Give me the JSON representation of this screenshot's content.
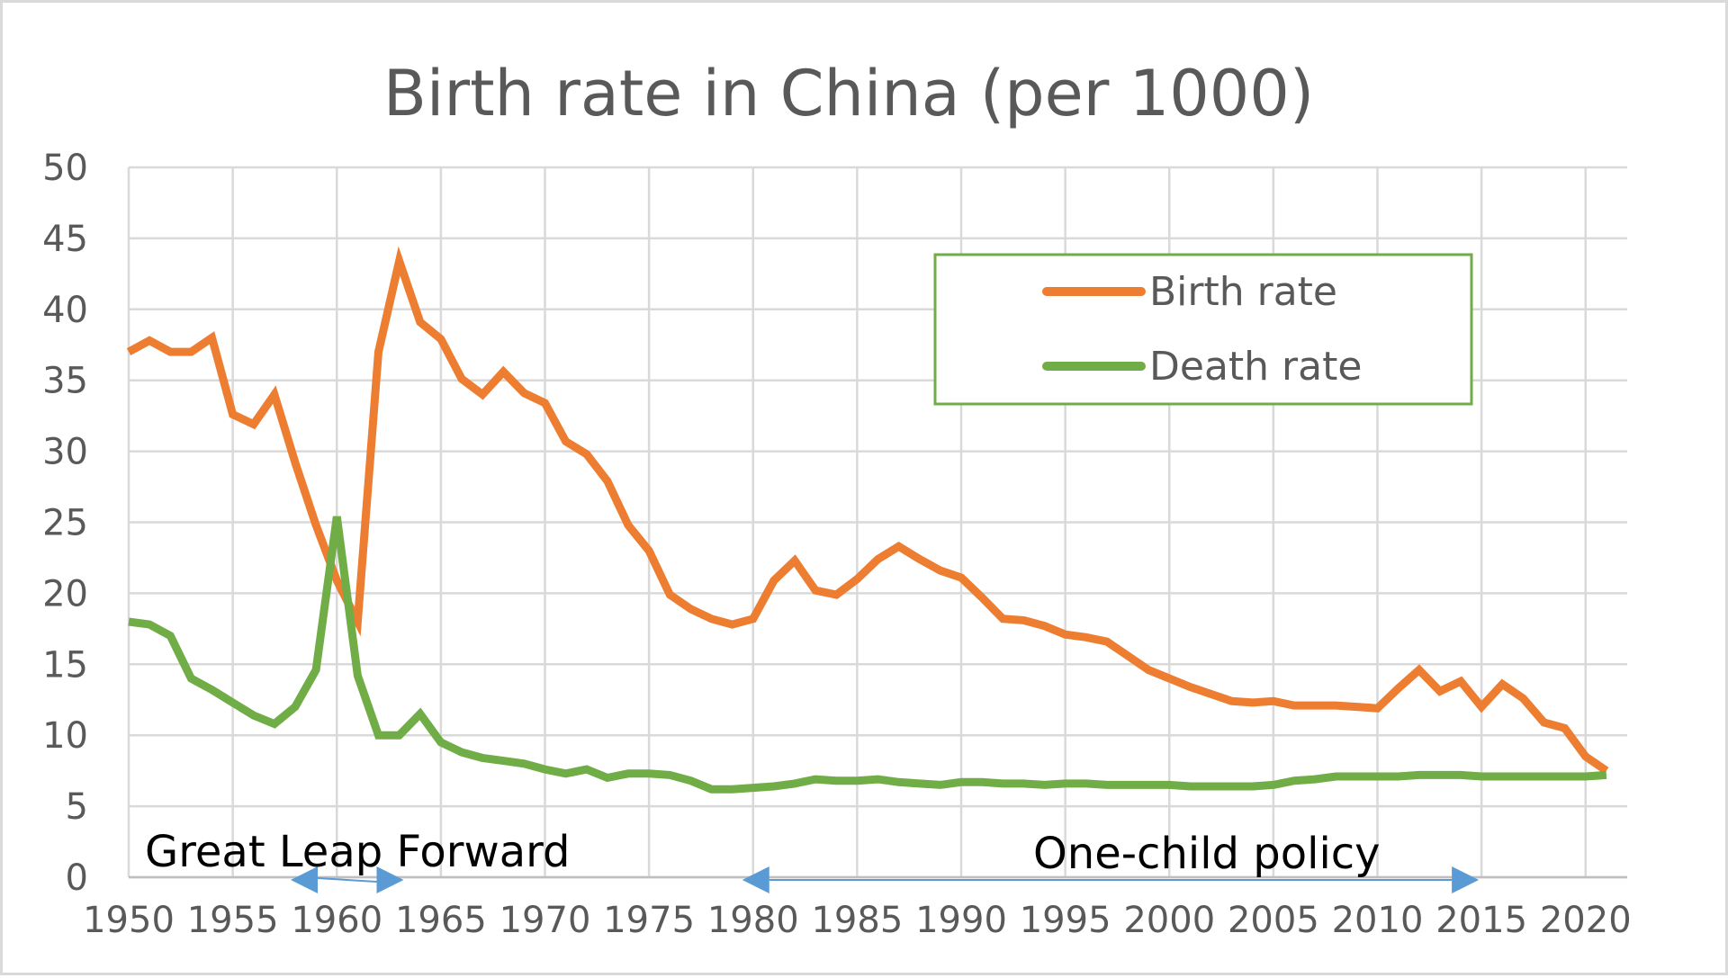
{
  "chart_data": {
    "type": "line",
    "title": "Birth rate in China (per 1000)",
    "xlabel": "",
    "ylabel": "",
    "xlim": [
      1950,
      2022
    ],
    "ylim": [
      0,
      50
    ],
    "x_ticks": [
      1950,
      1955,
      1960,
      1965,
      1970,
      1975,
      1980,
      1985,
      1990,
      1995,
      2000,
      2005,
      2010,
      2015,
      2020
    ],
    "y_ticks": [
      0,
      5,
      10,
      15,
      20,
      25,
      30,
      35,
      40,
      45,
      50
    ],
    "grid": true,
    "legend_position": "top-right",
    "x": [
      1950,
      1951,
      1952,
      1953,
      1954,
      1955,
      1956,
      1957,
      1958,
      1959,
      1960,
      1961,
      1962,
      1963,
      1964,
      1965,
      1966,
      1967,
      1968,
      1969,
      1970,
      1971,
      1972,
      1973,
      1974,
      1975,
      1976,
      1977,
      1978,
      1979,
      1980,
      1981,
      1982,
      1983,
      1984,
      1985,
      1986,
      1987,
      1988,
      1989,
      1990,
      1991,
      1992,
      1993,
      1994,
      1995,
      1996,
      1997,
      1998,
      1999,
      2000,
      2001,
      2002,
      2003,
      2004,
      2005,
      2006,
      2007,
      2008,
      2009,
      2010,
      2011,
      2012,
      2013,
      2014,
      2015,
      2016,
      2017,
      2018,
      2019,
      2020,
      2021
    ],
    "series": [
      {
        "name": "Birth rate",
        "color": "#ed7d31",
        "values": [
          37.0,
          37.8,
          37.0,
          37.0,
          38.0,
          32.6,
          31.9,
          34.0,
          29.2,
          24.8,
          20.9,
          18.0,
          37.0,
          43.4,
          39.1,
          37.9,
          35.1,
          34.0,
          35.6,
          34.1,
          33.4,
          30.7,
          29.8,
          27.9,
          24.8,
          23.0,
          19.9,
          18.9,
          18.2,
          17.8,
          18.2,
          20.9,
          22.3,
          20.2,
          19.9,
          21.0,
          22.4,
          23.3,
          22.4,
          21.6,
          21.1,
          19.7,
          18.2,
          18.1,
          17.7,
          17.1,
          16.9,
          16.6,
          15.6,
          14.6,
          14.0,
          13.4,
          12.9,
          12.4,
          12.3,
          12.4,
          12.1,
          12.1,
          12.1,
          12.0,
          11.9,
          13.3,
          14.6,
          13.1,
          13.8,
          12.0,
          13.6,
          12.6,
          10.9,
          10.5,
          8.5,
          7.5
        ]
      },
      {
        "name": "Death rate",
        "color": "#70ad47",
        "values": [
          18.0,
          17.8,
          17.0,
          14.0,
          13.2,
          12.3,
          11.4,
          10.8,
          12.0,
          14.6,
          25.4,
          14.2,
          10.0,
          10.0,
          11.5,
          9.5,
          8.8,
          8.4,
          8.2,
          8.0,
          7.6,
          7.3,
          7.6,
          7.0,
          7.3,
          7.3,
          7.2,
          6.8,
          6.2,
          6.2,
          6.3,
          6.4,
          6.6,
          6.9,
          6.8,
          6.8,
          6.9,
          6.7,
          6.6,
          6.5,
          6.7,
          6.7,
          6.6,
          6.6,
          6.5,
          6.6,
          6.6,
          6.5,
          6.5,
          6.5,
          6.5,
          6.4,
          6.4,
          6.4,
          6.4,
          6.5,
          6.8,
          6.9,
          7.1,
          7.1,
          7.1,
          7.1,
          7.2,
          7.2,
          7.2,
          7.1,
          7.1,
          7.1,
          7.1,
          7.1,
          7.1,
          7.2
        ]
      }
    ],
    "annotations": [
      {
        "label": "Great Leap Forward",
        "from": 1958,
        "to": 1962
      },
      {
        "label": "One-child policy",
        "from": 1980,
        "to": 2015
      }
    ]
  }
}
